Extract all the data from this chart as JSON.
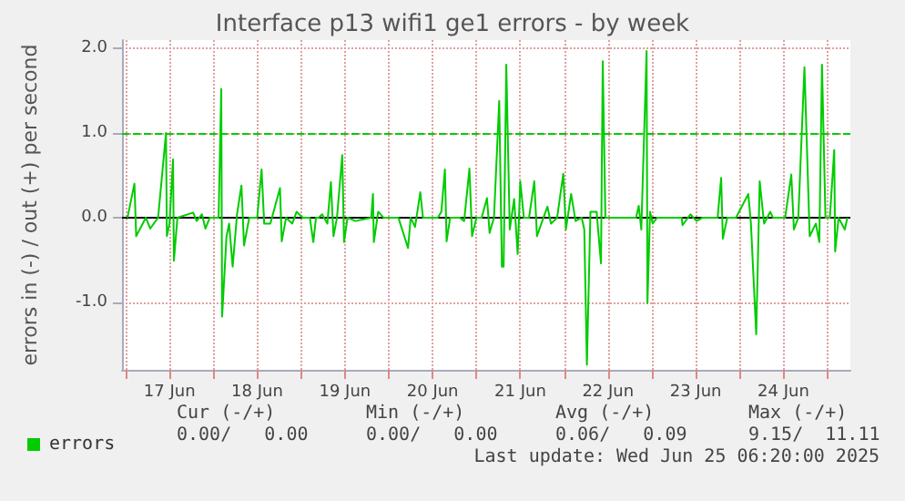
{
  "chart_data": {
    "type": "line",
    "title": "Interface p13 wifi1 ge1 errors - by week",
    "ylabel": "errors in (-) / out (+) per second",
    "xlim": [
      "--06-16T23:00",
      "--06-25T06:20"
    ],
    "ylim": [
      -1.8,
      2.1
    ],
    "xticks": [
      {
        "value": "--06-17T00:00",
        "label": null
      },
      {
        "value": "--06-17T12:00",
        "label": "17 Jun"
      },
      {
        "value": "--06-18T00:00",
        "label": null
      },
      {
        "value": "--06-18T12:00",
        "label": "18 Jun"
      },
      {
        "value": "--06-19T00:00",
        "label": null
      },
      {
        "value": "--06-19T12:00",
        "label": "19 Jun"
      },
      {
        "value": "--06-20T00:00",
        "label": null
      },
      {
        "value": "--06-20T12:00",
        "label": "20 Jun"
      },
      {
        "value": "--06-21T00:00",
        "label": null
      },
      {
        "value": "--06-21T12:00",
        "label": "21 Jun"
      },
      {
        "value": "--06-22T00:00",
        "label": null
      },
      {
        "value": "--06-22T12:00",
        "label": "22 Jun"
      },
      {
        "value": "--06-23T00:00",
        "label": null
      },
      {
        "value": "--06-23T12:00",
        "label": "23 Jun"
      },
      {
        "value": "--06-24T00:00",
        "label": null
      },
      {
        "value": "--06-24T12:00",
        "label": "24 Jun"
      },
      {
        "value": "--06-25T00:00",
        "label": null
      }
    ],
    "yticks": [
      {
        "value": -1,
        "label": "-1.0"
      },
      {
        "value": 0,
        "label": "0.0"
      },
      {
        "value": 1,
        "label": "1.0"
      },
      {
        "value": 2,
        "label": "2.0"
      }
    ],
    "series": [
      {
        "name": "errors",
        "color": "#00cc00",
        "x": [
          "--06-17T00:30",
          "--06-17T02:24",
          "--06-17T02:53",
          "--06-17T05:31",
          "--06-17T06:43",
          "--06-17T08:53",
          "--06-17T11:02",
          "--06-17T11:17",
          "--06-17T12:00",
          "--06-17T12:58",
          "--06-17T13:12",
          "--06-17T14:10",
          "--06-17T18:29",
          "--06-17T19:26",
          "--06-17T20:53",
          "--06-17T21:50",
          "--06-17T23:02",
          "--06-18T01:26",
          "--06-18T02:10",
          "--06-18T02:24",
          "--06-18T03:36",
          "--06-18T04:19",
          "--06-18T05:17",
          "--06-18T06:29",
          "--06-18T07:41",
          "--06-18T08:24",
          "--06-18T09:50",
          "--06-18T12:00",
          "--06-18T13:12",
          "--06-18T13:55",
          "--06-18T15:36",
          "--06-18T18:14",
          "--06-18T18:43",
          "--06-18T19:55",
          "--06-18T21:36",
          "--06-18T22:48",
          "--06-19T00:29",
          "--06-19T02:24",
          "--06-19T03:22",
          "--06-19T04:05",
          "--06-19T04:48",
          "--06-19T05:46",
          "--06-19T07:12",
          "--06-19T08:10",
          "--06-19T08:53",
          "--06-19T09:50",
          "--06-19T11:17",
          "--06-19T11:46",
          "--06-19T12:43",
          "--06-19T14:53",
          "--06-19T19:12",
          "--06-19T19:41",
          "--06-19T19:55",
          "--06-19T21:07",
          "--06-19T22:34",
          "--06-20T02:38",
          "--06-20T05:17",
          "--06-20T06:00",
          "--06-20T07:12",
          "--06-20T08:38",
          "--06-20T09:22",
          "--06-20T13:26",
          "--06-20T14:24",
          "--06-20T15:22",
          "--06-20T15:50",
          "--06-20T16:48",
          "--06-20T19:26",
          "--06-20T20:38",
          "--06-20T22:05",
          "--06-20T22:48",
          "--06-21T00:00",
          "--06-21T01:26",
          "--06-21T02:53",
          "--06-21T03:36",
          "--06-21T04:48",
          "--06-21T06:14",
          "--06-21T06:58",
          "--06-21T07:26",
          "--06-21T08:10",
          "--06-21T09:07",
          "--06-21T10:19",
          "--06-21T11:17",
          "--06-21T12:00",
          "--06-21T12:58",
          "--06-21T14:24",
          "--06-21T15:50",
          "--06-21T16:34",
          "--06-21T17:46",
          "--06-21T19:26",
          "--06-21T20:24",
          "--06-21T22:05",
          "--06-21T23:46",
          "--06-22T00:29",
          "--06-22T01:55",
          "--06-22T03:07",
          "--06-22T04:48",
          "--06-22T05:31",
          "--06-22T06:14",
          "--06-22T07:12",
          "--06-22T08:53",
          "--06-22T10:05",
          "--06-22T10:34",
          "--06-22T11:17",
          "--06-22T13:41",
          "--06-22T19:41",
          "--06-22T20:24",
          "--06-22T21:07",
          "--06-22T22:34",
          "--06-22T22:48",
          "--06-22T23:31",
          "--06-23T00:14",
          "--06-23T01:26",
          "--06-23T08:10",
          "--06-23T08:24",
          "--06-23T10:34",
          "--06-23T12:14",
          "--06-23T13:55",
          "--06-23T18:00",
          "--06-23T18:58",
          "--06-23T19:26",
          "--06-23T20:38",
          "--06-23T23:02",
          "--06-24T02:24",
          "--06-24T03:07",
          "--06-24T04:34",
          "--06-24T05:31",
          "--06-24T06:43",
          "--06-24T08:24",
          "--06-24T09:07",
          "--06-24T12:29",
          "--06-24T14:10",
          "--06-24T14:53",
          "--06-24T16:05",
          "--06-24T17:46",
          "--06-24T19:12",
          "--06-24T20:53",
          "--06-24T21:50",
          "--06-24T22:34",
          "--06-24T23:31",
          "--06-25T00:43",
          "--06-25T01:55",
          "--06-25T02:10",
          "--06-25T03:07",
          "--06-25T04:48",
          "--06-25T05:31"
        ],
        "values": [
          0,
          0.4,
          -0.22,
          0,
          -0.13,
          0,
          1.0,
          -0.22,
          -0.07,
          0.69,
          -0.51,
          0,
          0.06,
          -0.04,
          0.04,
          -0.13,
          0,
          0,
          1.52,
          -1.17,
          -0.22,
          -0.07,
          -0.58,
          0.04,
          0.38,
          -0.33,
          0,
          0,
          0.57,
          -0.07,
          -0.07,
          0.35,
          -0.28,
          0,
          -0.07,
          0.07,
          0,
          0,
          -0.29,
          0,
          0,
          0.04,
          -0.07,
          0.42,
          -0.22,
          0,
          0.74,
          -0.29,
          0,
          -0.04,
          0,
          0.28,
          -0.29,
          0.07,
          0,
          0,
          -0.36,
          0,
          -0.11,
          0.3,
          0,
          0,
          0.07,
          0.57,
          -0.28,
          0,
          0,
          -0.04,
          0.58,
          -0.22,
          0,
          0,
          0.23,
          -0.18,
          0,
          1.38,
          -0.58,
          -0.58,
          1.81,
          -0.14,
          0.22,
          -0.43,
          0.43,
          0,
          0,
          0.43,
          -0.22,
          -0.07,
          0.13,
          -0.07,
          0,
          0.52,
          -0.14,
          0.28,
          -0.04,
          0,
          -0.14,
          -1.74,
          0.07,
          0.07,
          -0.54,
          1.85,
          0,
          0,
          0,
          0.14,
          -0.14,
          1.97,
          -1.01,
          0.07,
          -0.07,
          0,
          0,
          -0.09,
          0.04,
          -0.04,
          0,
          0,
          0.47,
          -0.25,
          0,
          0,
          0.28,
          -0.07,
          -1.38,
          0.43,
          -0.07,
          0.07,
          0,
          0,
          0.51,
          -0.14,
          0,
          1.78,
          -0.22,
          -0.07,
          -0.29,
          1.81,
          0,
          0,
          0.8,
          -0.4,
          0,
          -0.14,
          0
        ]
      }
    ],
    "ref_lines": [
      {
        "axis": "y",
        "value": 1,
        "color": "#00cc00",
        "line_style": "dashed"
      },
      {
        "axis": "y",
        "value": 0,
        "color": "#000000",
        "line_style": "solid"
      }
    ],
    "grid": true,
    "legend": "bottom left",
    "marker": "none",
    "line_style": "solid",
    "annotations": [
      "Cur (-/+)",
      "Min (-/+)",
      "Avg (-/+)",
      "Max (-/+)",
      "0.00/   0.00",
      "0.00/   0.00",
      "0.06/   0.09",
      "9.15/  11.11",
      "Last update: Wed Jun 25 06:20:00 2025"
    ]
  }
}
